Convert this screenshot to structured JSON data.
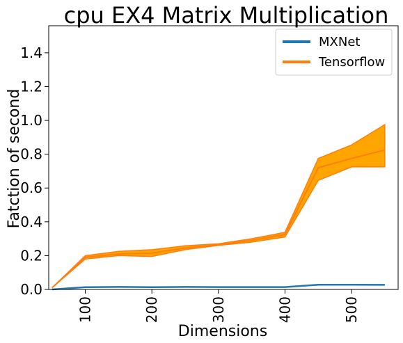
{
  "chart_data": {
    "type": "line",
    "title": "cpu EX4 Matrix Multiplication",
    "xlabel": "Dimensions",
    "ylabel": "Fatction of second",
    "xlim": [
      45,
      570
    ],
    "ylim": [
      0,
      1.56
    ],
    "xticks": [
      100,
      200,
      300,
      400,
      500
    ],
    "yticks": [
      0.0,
      0.2,
      0.4,
      0.6,
      0.8,
      1.0,
      1.2,
      1.4
    ],
    "ytick_labels": [
      "0.0",
      "0.2",
      "0.4",
      "0.6",
      "0.8",
      "1.0",
      "1.2",
      "1.4"
    ],
    "legend_position": "top-right",
    "grid": false,
    "series": [
      {
        "name": "MXNet",
        "color": "#1f77b4",
        "x": [
          50,
          100,
          150,
          200,
          250,
          300,
          350,
          400,
          450,
          500,
          550
        ],
        "values": [
          0.0,
          0.013,
          0.015,
          0.013,
          0.015,
          0.014,
          0.014,
          0.014,
          0.028,
          0.028,
          0.027
        ]
      },
      {
        "name": "Tensorflow",
        "color": "#ff7f0e",
        "band_color": "#ffa500",
        "x": [
          50,
          100,
          150,
          200,
          250,
          300,
          350,
          400,
          450,
          500,
          550
        ],
        "values": [
          0.01,
          0.19,
          0.21,
          0.215,
          0.245,
          0.265,
          0.29,
          0.325,
          0.72,
          0.775,
          0.825
        ],
        "lower": [
          0.01,
          0.18,
          0.2,
          0.195,
          0.235,
          0.26,
          0.28,
          0.31,
          0.645,
          0.725,
          0.725
        ],
        "upper": [
          0.01,
          0.2,
          0.225,
          0.235,
          0.258,
          0.27,
          0.3,
          0.338,
          0.775,
          0.855,
          0.975
        ]
      }
    ]
  }
}
